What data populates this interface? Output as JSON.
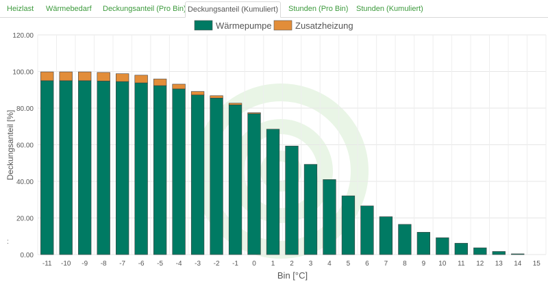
{
  "tabs": [
    {
      "label": "Heizlast"
    },
    {
      "label": "Wärmebedarf"
    },
    {
      "label": "Deckungsanteil (Pro Bin)"
    },
    {
      "label": "Deckungsanteil (Kumuliert)",
      "active": true
    },
    {
      "label": "Stunden (Pro Bin)"
    },
    {
      "label": "Stunden (Kumuliert)"
    }
  ],
  "chart_data": {
    "type": "bar",
    "stacked": true,
    "xlabel": "Bin [°C]",
    "ylabel": "Deckungsanteil [%]",
    "ylim": [
      0,
      120
    ],
    "yticks": [
      "0.00",
      "20.00",
      "40.00",
      "60.00",
      "80.00",
      "100.00",
      "120.00"
    ],
    "legend_position": "top",
    "grid": true,
    "categories": [
      "-11",
      "-10",
      "-9",
      "-8",
      "-7",
      "-6",
      "-5",
      "-4",
      "-3",
      "-2",
      "-1",
      "0",
      "1",
      "2",
      "3",
      "4",
      "5",
      "6",
      "7",
      "8",
      "9",
      "10",
      "11",
      "12",
      "13",
      "14",
      "15"
    ],
    "series": [
      {
        "name": "Wärmepumpe",
        "color": "#007a63",
        "values": [
          95.0,
          95.0,
          95.0,
          94.8,
          94.5,
          93.8,
          92.3,
          90.5,
          87.2,
          85.5,
          81.8,
          77.0,
          68.5,
          59.3,
          49.3,
          41.0,
          32.1,
          26.6,
          20.7,
          16.5,
          12.2,
          9.2,
          6.2,
          3.7,
          1.7,
          0.4,
          0.0
        ]
      },
      {
        "name": "Zusatzheizung",
        "color": "#e28d39",
        "values": [
          4.8,
          4.8,
          4.8,
          4.7,
          4.3,
          4.2,
          3.6,
          2.6,
          1.9,
          1.3,
          0.9,
          0.5,
          0.0,
          0.0,
          0.0,
          0.0,
          0.0,
          0.0,
          0.0,
          0.0,
          0.0,
          0.0,
          0.0,
          0.0,
          0.0,
          0.0,
          0.0
        ]
      }
    ]
  },
  "footnote": ":"
}
